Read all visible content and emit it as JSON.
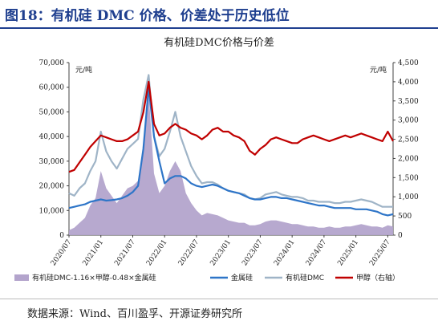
{
  "figure": {
    "title": "图18：有机硅 DMC 价格、价差处于历史低位",
    "source": "数据来源：Wind、百川盈孚、开源证券研究所"
  },
  "chart_data": {
    "type": "line",
    "title": "有机硅DMC价格与价差",
    "left_unit": "元/吨",
    "right_unit": "元/吨",
    "left_axis": {
      "ylim": [
        0,
        70000
      ],
      "ticks": [
        "0",
        "10,000",
        "20,000",
        "30,000",
        "40,000",
        "50,000",
        "60,000",
        "70,000"
      ]
    },
    "right_axis": {
      "ylim": [
        0,
        4500
      ],
      "ticks": [
        "0",
        "500",
        "1,000",
        "1,500",
        "2,000",
        "2,500",
        "3,000",
        "3,500",
        "4,000",
        "4,500"
      ]
    },
    "x_ticks": [
      "2020/07",
      "2021/01",
      "2021/07",
      "2022/01",
      "2022/07",
      "2023/01",
      "2023/07",
      "2024/01",
      "2024/07",
      "2025/01",
      "2025/07"
    ],
    "grid": false,
    "legend_position": "bottom",
    "colors": {
      "spread": "#b3a4cc",
      "silicon_metal": "#2e75c8",
      "dmc": "#9fb4c7",
      "methanol": "#c00000"
    },
    "series": [
      {
        "name": "有机硅DMC-1.16×甲醇-0.48×金属硅",
        "type": "area",
        "axis": "left",
        "x": [
          "2020/07",
          "2020/08",
          "2020/09",
          "2020/10",
          "2020/11",
          "2020/12",
          "2021/01",
          "2021/02",
          "2021/03",
          "2021/04",
          "2021/05",
          "2021/06",
          "2021/07",
          "2021/08",
          "2021/09",
          "2021/10",
          "2021/11",
          "2021/12",
          "2022/01",
          "2022/02",
          "2022/03",
          "2022/04",
          "2022/05",
          "2022/06",
          "2022/07",
          "2022/08",
          "2022/09",
          "2022/10",
          "2022/11",
          "2022/12",
          "2023/01",
          "2023/02",
          "2023/03",
          "2023/04",
          "2023/05",
          "2023/06",
          "2023/07",
          "2023/08",
          "2023/09",
          "2023/10",
          "2023/11",
          "2023/12",
          "2024/01",
          "2024/02",
          "2024/03",
          "2024/04",
          "2024/05",
          "2024/06",
          "2024/07",
          "2024/08",
          "2024/09",
          "2024/10",
          "2024/11",
          "2024/12",
          "2025/01",
          "2025/02",
          "2025/03",
          "2025/04",
          "2025/05",
          "2025/06",
          "2025/07",
          "2025/08"
        ],
        "values": [
          2000,
          3000,
          5000,
          7000,
          12000,
          15000,
          26000,
          19000,
          16000,
          13000,
          16000,
          19000,
          20000,
          22000,
          35000,
          58000,
          25000,
          17000,
          20000,
          26000,
          30000,
          26000,
          17000,
          13000,
          10000,
          8000,
          9000,
          8500,
          8000,
          7000,
          6000,
          5500,
          5000,
          5000,
          4000,
          4000,
          4500,
          5500,
          6000,
          6000,
          5500,
          5000,
          4500,
          4500,
          4000,
          3500,
          3500,
          3000,
          3000,
          3500,
          3000,
          3000,
          3500,
          3500,
          4000,
          4500,
          4000,
          3500,
          3500,
          3000,
          4000,
          3500
        ]
      },
      {
        "name": "金属硅",
        "type": "line",
        "axis": "left",
        "x": [
          "2020/07",
          "2020/08",
          "2020/09",
          "2020/10",
          "2020/11",
          "2020/12",
          "2021/01",
          "2021/02",
          "2021/03",
          "2021/04",
          "2021/05",
          "2021/06",
          "2021/07",
          "2021/08",
          "2021/09",
          "2021/10",
          "2021/11",
          "2021/12",
          "2022/01",
          "2022/02",
          "2022/03",
          "2022/04",
          "2022/05",
          "2022/06",
          "2022/07",
          "2022/08",
          "2022/09",
          "2022/10",
          "2022/11",
          "2022/12",
          "2023/01",
          "2023/02",
          "2023/03",
          "2023/04",
          "2023/05",
          "2023/06",
          "2023/07",
          "2023/08",
          "2023/09",
          "2023/10",
          "2023/11",
          "2023/12",
          "2024/01",
          "2024/02",
          "2024/03",
          "2024/04",
          "2024/05",
          "2024/06",
          "2024/07",
          "2024/08",
          "2024/09",
          "2024/10",
          "2024/11",
          "2024/12",
          "2025/01",
          "2025/02",
          "2025/03",
          "2025/04",
          "2025/05",
          "2025/06",
          "2025/07",
          "2025/08"
        ],
        "values": [
          11000,
          11500,
          12000,
          12500,
          13500,
          14000,
          14500,
          14000,
          14200,
          14500,
          15000,
          16000,
          17500,
          20000,
          35000,
          60000,
          40000,
          30000,
          21000,
          23000,
          24000,
          24000,
          23000,
          21000,
          20000,
          19500,
          20000,
          20500,
          20000,
          19000,
          18000,
          17500,
          17000,
          16000,
          15000,
          14500,
          14500,
          15000,
          15500,
          15500,
          15000,
          15000,
          14500,
          14000,
          13500,
          13000,
          12500,
          12000,
          12000,
          11500,
          11000,
          11000,
          11000,
          11000,
          10500,
          10500,
          10500,
          10000,
          9500,
          8500,
          8000,
          8500
        ]
      },
      {
        "name": "有机硅DMC",
        "type": "line",
        "axis": "left",
        "x": [
          "2020/07",
          "2020/08",
          "2020/09",
          "2020/10",
          "2020/11",
          "2020/12",
          "2021/01",
          "2021/02",
          "2021/03",
          "2021/04",
          "2021/05",
          "2021/06",
          "2021/07",
          "2021/08",
          "2021/09",
          "2021/10",
          "2021/11",
          "2021/12",
          "2022/01",
          "2022/02",
          "2022/03",
          "2022/04",
          "2022/05",
          "2022/06",
          "2022/07",
          "2022/08",
          "2022/09",
          "2022/10",
          "2022/11",
          "2022/12",
          "2023/01",
          "2023/02",
          "2023/03",
          "2023/04",
          "2023/05",
          "2023/06",
          "2023/07",
          "2023/08",
          "2023/09",
          "2023/10",
          "2023/11",
          "2023/12",
          "2024/01",
          "2024/02",
          "2024/03",
          "2024/04",
          "2024/05",
          "2024/06",
          "2024/07",
          "2024/08",
          "2024/09",
          "2024/10",
          "2024/11",
          "2024/12",
          "2025/01",
          "2025/02",
          "2025/03",
          "2025/04",
          "2025/05",
          "2025/06",
          "2025/07",
          "2025/08"
        ],
        "values": [
          17000,
          16000,
          19000,
          21000,
          26000,
          30000,
          42000,
          34000,
          30000,
          27000,
          31000,
          35000,
          37000,
          39000,
          55000,
          65000,
          40000,
          32000,
          35000,
          42000,
          50000,
          40000,
          34000,
          28000,
          24000,
          21000,
          21500,
          21500,
          20500,
          19000,
          18000,
          17500,
          17000,
          16500,
          15000,
          14500,
          15000,
          16500,
          17000,
          17500,
          16500,
          16000,
          15500,
          15500,
          15000,
          14000,
          14000,
          13500,
          13500,
          13500,
          13000,
          13000,
          13500,
          13500,
          14000,
          14500,
          14000,
          13500,
          12500,
          11500,
          11500,
          11500
        ]
      },
      {
        "name": "甲醇（右轴）",
        "type": "line",
        "axis": "right",
        "x": [
          "2020/07",
          "2020/08",
          "2020/09",
          "2020/10",
          "2020/11",
          "2020/12",
          "2021/01",
          "2021/02",
          "2021/03",
          "2021/04",
          "2021/05",
          "2021/06",
          "2021/07",
          "2021/08",
          "2021/09",
          "2021/10",
          "2021/11",
          "2021/12",
          "2022/01",
          "2022/02",
          "2022/03",
          "2022/04",
          "2022/05",
          "2022/06",
          "2022/07",
          "2022/08",
          "2022/09",
          "2022/10",
          "2022/11",
          "2022/12",
          "2023/01",
          "2023/02",
          "2023/03",
          "2023/04",
          "2023/05",
          "2023/06",
          "2023/07",
          "2023/08",
          "2023/09",
          "2023/10",
          "2023/11",
          "2023/12",
          "2024/01",
          "2024/02",
          "2024/03",
          "2024/04",
          "2024/05",
          "2024/06",
          "2024/07",
          "2024/08",
          "2024/09",
          "2024/10",
          "2024/11",
          "2024/12",
          "2025/01",
          "2025/02",
          "2025/03",
          "2025/04",
          "2025/05",
          "2025/06",
          "2025/07",
          "2025/08"
        ],
        "values": [
          1650,
          1700,
          1900,
          2100,
          2300,
          2450,
          2600,
          2550,
          2500,
          2450,
          2450,
          2500,
          2600,
          2700,
          3200,
          4000,
          2900,
          2600,
          2650,
          2800,
          2900,
          2800,
          2750,
          2650,
          2600,
          2500,
          2600,
          2750,
          2800,
          2700,
          2700,
          2600,
          2550,
          2450,
          2200,
          2100,
          2250,
          2350,
          2500,
          2550,
          2500,
          2450,
          2400,
          2400,
          2500,
          2550,
          2600,
          2550,
          2500,
          2450,
          2500,
          2550,
          2600,
          2550,
          2600,
          2650,
          2600,
          2550,
          2500,
          2450,
          2700,
          2450
        ]
      }
    ]
  }
}
